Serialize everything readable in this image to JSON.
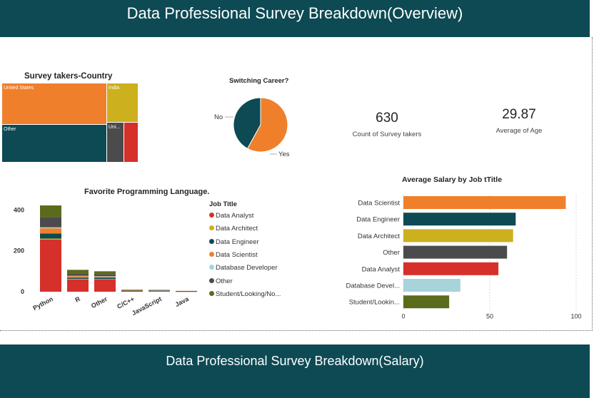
{
  "header": {
    "title": "Data Professional Survey Breakdown(Overview)"
  },
  "footer": {
    "title": "Data Professional Survey Breakdown(Salary)"
  },
  "treemap": {
    "title": "Survey takers-Country",
    "cells": [
      {
        "label": "United States",
        "color": "#f07f2b"
      },
      {
        "label": "India",
        "color": "#ccb01e"
      },
      {
        "label": "Other",
        "color": "#0d4a54"
      },
      {
        "label": "Uni...",
        "color": "#4b4b4d"
      },
      {
        "label": "",
        "color": "#d6302a"
      }
    ]
  },
  "pie": {
    "title": "Switching Career?",
    "slices": [
      {
        "label": "No",
        "percent": 42,
        "color": "#0d4a54"
      },
      {
        "label": "Yes",
        "percent": 58,
        "color": "#f07f2b"
      }
    ]
  },
  "cards": {
    "count": {
      "value": "630",
      "label": "Count of Survey takers"
    },
    "age": {
      "value": "29.87",
      "label": "Average of Age"
    }
  },
  "colors": {
    "Data Analyst": "#d6302a",
    "Data Architect": "#ccb01e",
    "Data Engineer": "#0d4a54",
    "Data Scientist": "#f07f2b",
    "Database Developer": "#a7d4db",
    "Other": "#4b4b4d",
    "Student/Looking/None": "#5b6b1c"
  },
  "legend": {
    "title": "Job Title",
    "items": [
      {
        "label": "Data Analyst",
        "color": "#d6302a"
      },
      {
        "label": "Data Architect",
        "color": "#ccb01e"
      },
      {
        "label": "Data Engineer",
        "color": "#0d4a54"
      },
      {
        "label": "Data Scientist",
        "color": "#f07f2b"
      },
      {
        "label": "Database Developer",
        "color": "#a7d4db"
      },
      {
        "label": "Other",
        "color": "#4b4b4d"
      },
      {
        "label": "Student/Looking/No...",
        "color": "#5b6b1c"
      }
    ]
  },
  "chart_data": [
    {
      "type": "bar",
      "title": "Favorite Programming Language.",
      "stacked": true,
      "categories": [
        "Python",
        "R",
        "Other",
        "C/C++",
        "JavaScript",
        "Java"
      ],
      "ylim": [
        0,
        450
      ],
      "yticks": [
        0,
        200,
        400
      ],
      "series": [
        {
          "name": "Data Analyst",
          "values": [
            255,
            60,
            60,
            4,
            2,
            1
          ]
        },
        {
          "name": "Data Architect",
          "values": [
            5,
            3,
            2,
            0,
            0,
            0
          ]
        },
        {
          "name": "Data Engineer",
          "values": [
            25,
            5,
            7,
            1,
            1,
            1
          ]
        },
        {
          "name": "Data Scientist",
          "values": [
            25,
            8,
            5,
            1,
            1,
            0
          ]
        },
        {
          "name": "Database Developer",
          "values": [
            5,
            2,
            2,
            0,
            1,
            0
          ]
        },
        {
          "name": "Other",
          "values": [
            50,
            12,
            10,
            2,
            2,
            1
          ]
        },
        {
          "name": "Student/Looking/None",
          "values": [
            57,
            17,
            14,
            2,
            2,
            1
          ]
        }
      ],
      "legend_position": "right"
    },
    {
      "type": "bar",
      "orientation": "horizontal",
      "title": "Average Salary by  Job tTitle",
      "categories": [
        "Data Scientist",
        "Data Engineer",
        "Data Architect",
        "Other",
        "Data Analyst",
        "Database Devel...",
        "Student/Lookin..."
      ],
      "values": [
        94,
        65,
        63.5,
        60,
        55,
        33,
        26.5
      ],
      "colors": [
        "#f07f2b",
        "#0d4a54",
        "#ccb01e",
        "#4b4b4d",
        "#d6302a",
        "#a7d4db",
        "#5b6b1c"
      ],
      "xlim": [
        0,
        100
      ],
      "xticks": [
        0,
        50,
        100
      ],
      "gridlines": true
    }
  ]
}
